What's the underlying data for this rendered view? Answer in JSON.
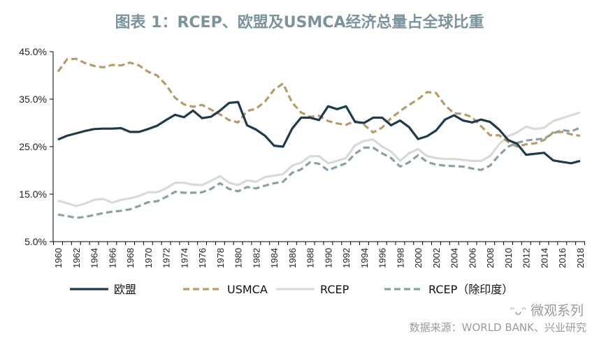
{
  "title": "图表 1：RCEP、欧盟及USMCA经济总量占全球比重",
  "watermark": "微观系列",
  "source": "数据来源：WORLD BANK、兴业研究",
  "chart_data": {
    "type": "line",
    "title": "图表 1：RCEP、欧盟及USMCA经济总量占全球比重",
    "xlabel": "",
    "ylabel": "",
    "ylim": [
      5,
      45
    ],
    "yticks": [
      "5.0%",
      "15.0%",
      "25.0%",
      "35.0%",
      "45.0%"
    ],
    "ytick_values": [
      5,
      15,
      25,
      35,
      45
    ],
    "x": [
      1960,
      1961,
      1962,
      1963,
      1964,
      1965,
      1966,
      1967,
      1968,
      1969,
      1970,
      1971,
      1972,
      1973,
      1974,
      1975,
      1976,
      1977,
      1978,
      1979,
      1980,
      1981,
      1982,
      1983,
      1984,
      1985,
      1986,
      1987,
      1988,
      1989,
      1990,
      1991,
      1992,
      1993,
      1994,
      1995,
      1996,
      1997,
      1998,
      1999,
      2000,
      2001,
      2002,
      2003,
      2004,
      2005,
      2006,
      2007,
      2008,
      2009,
      2010,
      2011,
      2012,
      2013,
      2014,
      2015,
      2016,
      2017,
      2018
    ],
    "xtick_labels": [
      "1960",
      "1962",
      "1964",
      "1966",
      "1968",
      "1970",
      "1972",
      "1974",
      "1976",
      "1978",
      "1980",
      "1982",
      "1984",
      "1986",
      "1988",
      "1990",
      "1992",
      "1994",
      "1996",
      "1998",
      "2000",
      "2002",
      "2004",
      "2006",
      "2008",
      "2010",
      "2012",
      "2014",
      "2016",
      "2018"
    ],
    "legend_position": "bottom",
    "series": [
      {
        "name": "欧盟",
        "color": "#1f3a4d",
        "dash": "solid",
        "values": [
          26.5,
          27.3,
          27.8,
          28.3,
          28.7,
          28.8,
          28.8,
          28.9,
          28.1,
          28.1,
          28.7,
          29.4,
          30.6,
          31.7,
          31.2,
          32.6,
          31.0,
          31.3,
          32.6,
          34.2,
          34.4,
          29.5,
          28.6,
          27.3,
          25.2,
          25.0,
          28.8,
          31.1,
          31.1,
          30.6,
          33.5,
          32.9,
          33.5,
          30.2,
          30.0,
          31.1,
          31.1,
          29.5,
          30.5,
          29.1,
          26.6,
          27.2,
          28.4,
          30.7,
          31.6,
          30.5,
          30.1,
          30.7,
          30.2,
          28.6,
          26.4,
          25.6,
          23.3,
          23.5,
          23.7,
          22.1,
          21.8,
          21.5,
          22.0
        ]
      },
      {
        "name": "USMCA",
        "color": "#b59c6b",
        "dash": "dashed",
        "values": [
          40.8,
          43.4,
          43.5,
          42.6,
          42.0,
          41.7,
          42.2,
          42.1,
          42.7,
          42.1,
          40.8,
          40.0,
          38.0,
          35.3,
          33.9,
          33.4,
          33.8,
          32.8,
          31.8,
          30.6,
          30.1,
          32.5,
          33.0,
          34.5,
          37.0,
          38.3,
          34.3,
          32.2,
          31.3,
          31.5,
          30.4,
          29.9,
          29.6,
          30.4,
          29.6,
          28.0,
          29.0,
          31.0,
          32.5,
          33.8,
          35.0,
          36.5,
          36.3,
          33.7,
          32.0,
          31.9,
          31.2,
          29.3,
          27.4,
          27.4,
          26.0,
          25.0,
          25.5,
          25.7,
          26.4,
          28.0,
          28.1,
          27.6,
          27.3
        ]
      },
      {
        "name": "RCEP",
        "color": "#d9d9d9",
        "dash": "solid",
        "values": [
          13.6,
          13.1,
          12.5,
          13.0,
          13.8,
          14.0,
          13.2,
          13.8,
          14.1,
          14.6,
          15.4,
          15.4,
          16.2,
          17.4,
          17.4,
          17.0,
          16.9,
          17.8,
          18.8,
          17.4,
          16.9,
          17.9,
          17.6,
          18.6,
          18.9,
          19.2,
          21.0,
          21.6,
          23.0,
          23.0,
          21.5,
          22.0,
          22.6,
          25.3,
          26.2,
          26.5,
          25.0,
          24.0,
          22.0,
          23.6,
          24.5,
          23.0,
          22.6,
          22.4,
          22.4,
          22.2,
          22.0,
          22.0,
          23.0,
          25.5,
          27.2,
          28.0,
          29.2,
          28.7,
          29.0,
          30.4,
          31.0,
          31.6,
          32.2
        ]
      },
      {
        "name": "RCEP（除印度）",
        "color": "#8c9fa5",
        "dash": "dashed",
        "values": [
          10.7,
          10.4,
          10.0,
          10.2,
          10.6,
          11.0,
          11.3,
          11.5,
          11.8,
          12.5,
          13.3,
          13.5,
          14.4,
          15.5,
          15.3,
          15.3,
          15.4,
          16.1,
          17.3,
          16.1,
          15.6,
          16.5,
          16.2,
          16.8,
          17.3,
          17.6,
          19.5,
          20.2,
          21.7,
          21.4,
          20.0,
          20.8,
          21.5,
          23.5,
          24.8,
          24.8,
          23.6,
          22.6,
          20.8,
          21.7,
          23.2,
          21.8,
          21.2,
          21.0,
          20.9,
          20.8,
          20.4,
          20.1,
          21.0,
          23.2,
          25.0,
          25.8,
          26.3,
          26.5,
          26.7,
          27.8,
          28.5,
          28.2,
          29.0
        ]
      }
    ]
  }
}
